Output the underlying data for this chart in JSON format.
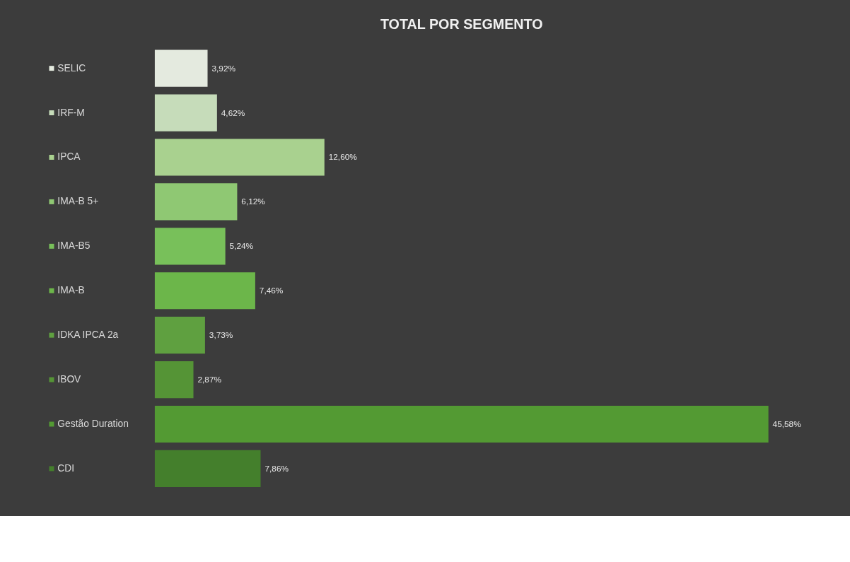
{
  "chart_data": {
    "type": "bar",
    "orientation": "horizontal",
    "title": "TOTAL POR SEGMENTO",
    "categories": [
      "SELIC",
      "IRF-M",
      "IPCA",
      "IMA-B 5+",
      "IMA-B5",
      "IMA-B",
      "IDKA IPCA 2a",
      "IBOV",
      "Gestão Duration",
      "CDI"
    ],
    "values": [
      3.92,
      4.62,
      12.6,
      6.12,
      5.24,
      7.46,
      3.73,
      2.87,
      45.58,
      7.86
    ],
    "value_labels": [
      "3,92%",
      "4,62%",
      "12,60%",
      "6,12%",
      "5,24%",
      "7,46%",
      "3,73%",
      "2,87%",
      "45,58%",
      "7,86%"
    ],
    "colors": [
      "#e4eadf",
      "#c6dcba",
      "#a9d18f",
      "#8fc873",
      "#78c05a",
      "#6cb64a",
      "#5fa040",
      "#559436",
      "#539a33",
      "#447f2c"
    ],
    "tick_labels": "y"
  }
}
